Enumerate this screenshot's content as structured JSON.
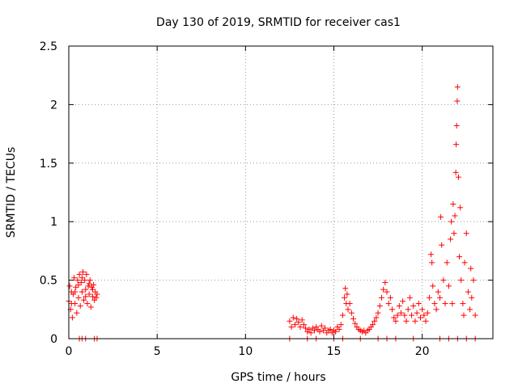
{
  "chart_data": {
    "type": "scatter",
    "title": "Day 130 of 2019, SRMTID for receiver cas1",
    "xlabel": "GPS time / hours",
    "ylabel": "SRMTID / TECUs",
    "xlim": [
      0,
      24
    ],
    "ylim": [
      0,
      2.5
    ],
    "grid": true,
    "legend": "none",
    "marker": "+",
    "color": "#ff0000",
    "x_ticks": [
      {
        "value": 0,
        "label": "0"
      },
      {
        "value": 5,
        "label": "5"
      },
      {
        "value": 10,
        "label": "10"
      },
      {
        "value": 15,
        "label": "15"
      },
      {
        "value": 20,
        "label": "20"
      }
    ],
    "y_ticks": [
      {
        "value": 0,
        "label": "0"
      },
      {
        "value": 0.5,
        "label": "0.5"
      },
      {
        "value": 1,
        "label": "1"
      },
      {
        "value": 1.5,
        "label": "1.5"
      },
      {
        "value": 2,
        "label": "2"
      },
      {
        "value": 2.5,
        "label": "2.5"
      }
    ],
    "series": [
      {
        "name": "SRMTID",
        "points": [
          [
            0.0,
            0.32
          ],
          [
            0.05,
            0.45
          ],
          [
            0.1,
            0.25
          ],
          [
            0.15,
            0.4
          ],
          [
            0.2,
            0.18
          ],
          [
            0.25,
            0.38
          ],
          [
            0.3,
            0.52
          ],
          [
            0.35,
            0.3
          ],
          [
            0.4,
            0.44
          ],
          [
            0.45,
            0.22
          ],
          [
            0.5,
            0.5
          ],
          [
            0.55,
            0.35
          ],
          [
            0.6,
            0.55
          ],
          [
            0.65,
            0.28
          ],
          [
            0.7,
            0.48
          ],
          [
            0.75,
            0.4
          ],
          [
            0.8,
            0.57
          ],
          [
            0.85,
            0.33
          ],
          [
            0.9,
            0.5
          ],
          [
            0.95,
            0.42
          ],
          [
            1.0,
            0.55
          ],
          [
            1.05,
            0.3
          ],
          [
            1.1,
            0.45
          ],
          [
            1.15,
            0.38
          ],
          [
            1.2,
            0.5
          ],
          [
            1.25,
            0.27
          ],
          [
            1.3,
            0.44
          ],
          [
            1.35,
            0.36
          ],
          [
            1.4,
            0.46
          ],
          [
            1.45,
            0.33
          ],
          [
            1.5,
            0.4
          ],
          [
            1.55,
            0.35
          ],
          [
            1.6,
            0.38
          ],
          [
            0.15,
            0.3
          ],
          [
            0.35,
            0.4
          ],
          [
            0.55,
            0.46
          ],
          [
            0.75,
            0.52
          ],
          [
            0.95,
            0.36
          ],
          [
            1.15,
            0.47
          ],
          [
            1.35,
            0.42
          ],
          [
            0.6,
            0.0
          ],
          [
            0.75,
            0.0
          ],
          [
            0.95,
            0.0
          ],
          [
            1.45,
            0.0
          ],
          [
            1.6,
            0.0
          ],
          [
            12.5,
            0.15
          ],
          [
            12.6,
            0.1
          ],
          [
            12.7,
            0.18
          ],
          [
            12.8,
            0.12
          ],
          [
            12.9,
            0.17
          ],
          [
            13.0,
            0.14
          ],
          [
            13.1,
            0.1
          ],
          [
            13.2,
            0.16
          ],
          [
            13.3,
            0.12
          ],
          [
            13.4,
            0.09
          ],
          [
            13.5,
            0.06
          ],
          [
            13.6,
            0.08
          ],
          [
            13.7,
            0.05
          ],
          [
            13.8,
            0.09
          ],
          [
            13.9,
            0.07
          ],
          [
            14.0,
            0.1
          ],
          [
            14.1,
            0.08
          ],
          [
            14.2,
            0.06
          ],
          [
            14.3,
            0.11
          ],
          [
            14.4,
            0.07
          ],
          [
            14.5,
            0.09
          ],
          [
            14.6,
            0.05
          ],
          [
            14.7,
            0.07
          ],
          [
            14.8,
            0.08
          ],
          [
            14.9,
            0.05
          ],
          [
            15.0,
            0.07
          ],
          [
            15.1,
            0.06
          ],
          [
            15.2,
            0.1
          ],
          [
            15.3,
            0.08
          ],
          [
            15.4,
            0.12
          ],
          [
            15.5,
            0.2
          ],
          [
            15.6,
            0.35
          ],
          [
            15.65,
            0.43
          ],
          [
            15.7,
            0.3
          ],
          [
            15.75,
            0.38
          ],
          [
            15.8,
            0.25
          ],
          [
            15.9,
            0.3
          ],
          [
            16.0,
            0.22
          ],
          [
            16.1,
            0.17
          ],
          [
            16.2,
            0.13
          ],
          [
            16.3,
            0.1
          ],
          [
            16.4,
            0.08
          ],
          [
            16.5,
            0.07
          ],
          [
            16.6,
            0.06
          ],
          [
            16.7,
            0.07
          ],
          [
            16.8,
            0.05
          ],
          [
            16.9,
            0.07
          ],
          [
            17.0,
            0.08
          ],
          [
            17.1,
            0.1
          ],
          [
            17.2,
            0.12
          ],
          [
            17.3,
            0.15
          ],
          [
            17.4,
            0.18
          ],
          [
            17.5,
            0.22
          ],
          [
            17.6,
            0.28
          ],
          [
            17.7,
            0.35
          ],
          [
            17.8,
            0.42
          ],
          [
            17.9,
            0.48
          ],
          [
            18.0,
            0.4
          ],
          [
            18.1,
            0.3
          ],
          [
            18.2,
            0.35
          ],
          [
            18.3,
            0.25
          ],
          [
            18.4,
            0.18
          ],
          [
            18.5,
            0.15
          ],
          [
            18.6,
            0.2
          ],
          [
            18.7,
            0.28
          ],
          [
            18.8,
            0.22
          ],
          [
            18.9,
            0.32
          ],
          [
            19.0,
            0.2
          ],
          [
            19.1,
            0.15
          ],
          [
            19.2,
            0.25
          ],
          [
            19.3,
            0.35
          ],
          [
            19.4,
            0.2
          ],
          [
            19.5,
            0.28
          ],
          [
            19.6,
            0.15
          ],
          [
            19.7,
            0.22
          ],
          [
            19.8,
            0.3
          ],
          [
            19.9,
            0.18
          ],
          [
            20.0,
            0.25
          ],
          [
            20.1,
            0.2
          ],
          [
            20.2,
            0.15
          ],
          [
            20.3,
            0.22
          ],
          [
            20.4,
            0.35
          ],
          [
            20.5,
            0.72
          ],
          [
            20.55,
            0.65
          ],
          [
            20.6,
            0.45
          ],
          [
            20.7,
            0.3
          ],
          [
            20.8,
            0.25
          ],
          [
            20.9,
            0.4
          ],
          [
            21.0,
            0.35
          ],
          [
            21.1,
            0.8
          ],
          [
            21.2,
            0.5
          ],
          [
            21.3,
            0.3
          ],
          [
            21.4,
            0.65
          ],
          [
            21.5,
            0.45
          ],
          [
            21.6,
            0.85
          ],
          [
            21.7,
            0.3
          ],
          [
            21.75,
            1.15
          ],
          [
            21.8,
            0.9
          ],
          [
            21.85,
            1.05
          ],
          [
            21.9,
            1.42
          ],
          [
            21.92,
            1.66
          ],
          [
            21.95,
            1.82
          ],
          [
            21.98,
            2.03
          ],
          [
            22.0,
            2.15
          ],
          [
            22.05,
            1.38
          ],
          [
            22.1,
            0.7
          ],
          [
            22.2,
            0.5
          ],
          [
            22.3,
            0.3
          ],
          [
            22.4,
            0.65
          ],
          [
            22.5,
            0.9
          ],
          [
            22.6,
            0.4
          ],
          [
            22.7,
            0.25
          ],
          [
            22.8,
            0.35
          ],
          [
            22.9,
            0.5
          ],
          [
            23.0,
            0.2
          ],
          [
            21.05,
            1.04
          ],
          [
            21.65,
            1.0
          ],
          [
            22.15,
            1.12
          ],
          [
            22.35,
            0.2
          ],
          [
            22.75,
            0.6
          ],
          [
            12.5,
            0.0
          ],
          [
            13.5,
            0.0
          ],
          [
            14.0,
            0.0
          ],
          [
            15.0,
            0.0
          ],
          [
            15.5,
            0.0
          ],
          [
            16.5,
            0.0
          ],
          [
            17.5,
            0.0
          ],
          [
            18.0,
            0.0
          ],
          [
            18.5,
            0.0
          ],
          [
            19.5,
            0.0
          ],
          [
            21.0,
            0.0
          ],
          [
            21.5,
            0.0
          ],
          [
            22.0,
            0.0
          ],
          [
            22.5,
            0.0
          ],
          [
            23.0,
            0.0
          ]
        ]
      }
    ]
  }
}
